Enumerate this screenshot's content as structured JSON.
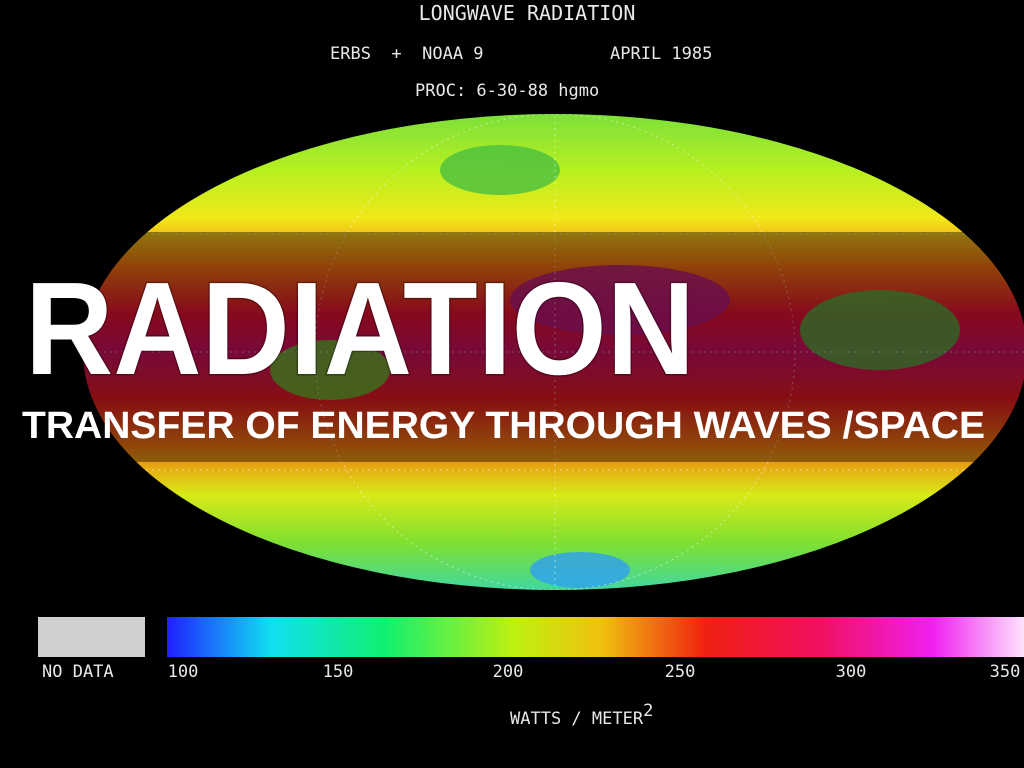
{
  "image": {
    "title": "LONGWAVE RADIATION",
    "satellites": "ERBS  +  NOAA 9",
    "date": "APRIL 1985",
    "processed": "PROC: 6-30-88 hgmo",
    "legend": {
      "no_data": "NO DATA",
      "ticks": [
        "100",
        "150",
        "200",
        "250",
        "300",
        "350"
      ],
      "unit": "WATTS / METER",
      "unit_exponent": "2"
    }
  },
  "slide": {
    "heading": "RADIATION",
    "subheading": "TRANSFER OF ENERGY THROUGH WAVES /SPACE"
  }
}
